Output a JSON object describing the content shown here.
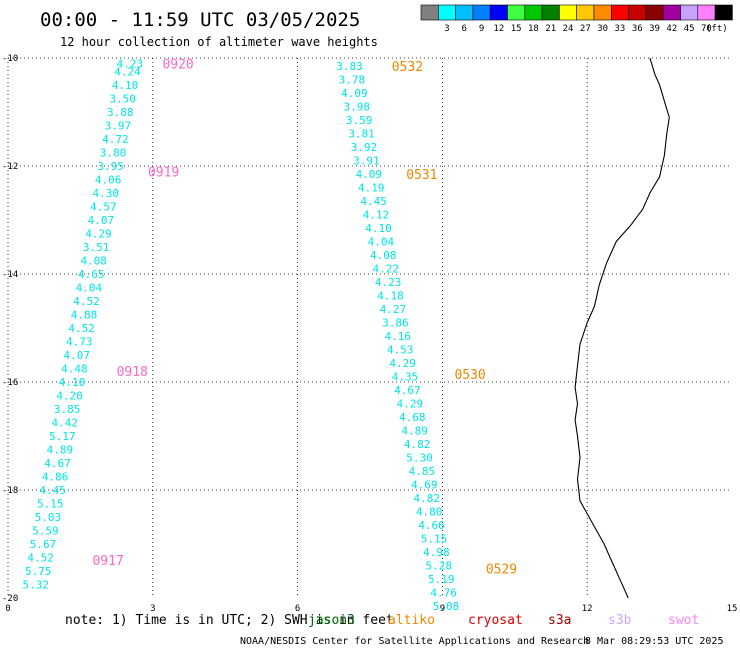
{
  "chart_data": {
    "type": "scatter",
    "title": "00:00 - 11:59 UTC 03/05/2025",
    "subtitle": "12 hour collection of altimeter wave heights",
    "xlabel": "",
    "ylabel": "",
    "xlim": [
      0,
      15
    ],
    "ylim": [
      -20,
      -10
    ],
    "x_ticks": [
      0,
      3,
      6,
      9,
      12,
      15
    ],
    "y_ticks": [
      -10,
      -12,
      -14,
      -16,
      -18,
      -20
    ],
    "grid": true,
    "color_scale": {
      "unit": "(ft)",
      "bins": [
        {
          "label": "",
          "color": "#808080"
        },
        {
          "label": "3",
          "color": "#00ffff"
        },
        {
          "label": "6",
          "color": "#00bfff"
        },
        {
          "label": "9",
          "color": "#0080ff"
        },
        {
          "label": "12",
          "color": "#0000ff"
        },
        {
          "label": "15",
          "color": "#40ff40"
        },
        {
          "label": "18",
          "color": "#00c800"
        },
        {
          "label": "21",
          "color": "#008000"
        },
        {
          "label": "24",
          "color": "#ffff00"
        },
        {
          "label": "27",
          "color": "#ffc800"
        },
        {
          "label": "30",
          "color": "#ff8c00"
        },
        {
          "label": "33",
          "color": "#ff0000"
        },
        {
          "label": "36",
          "color": "#c80000"
        },
        {
          "label": "39",
          "color": "#8b0000"
        },
        {
          "label": "42",
          "color": "#a000a0"
        },
        {
          "label": "45",
          "color": "#c8a0ff"
        },
        {
          "label": "70",
          "color": "#ff80ff"
        },
        {
          "label": "",
          "color": "#000000"
        }
      ]
    },
    "tracks": [
      {
        "satellite": "swot",
        "color": "#00e5e5",
        "label_color": "#ff66cc",
        "points": [
          {
            "lon": 2.8,
            "lat": -10.1,
            "v": "4.23"
          },
          {
            "lon": 2.75,
            "lat": -10.25,
            "v": "4.24"
          },
          {
            "lon": 2.7,
            "lat": -10.5,
            "v": "4.10"
          },
          {
            "lon": 2.65,
            "lat": -10.75,
            "v": "3.50"
          },
          {
            "lon": 2.6,
            "lat": -11.0,
            "v": "3.88"
          },
          {
            "lon": 2.55,
            "lat": -11.25,
            "v": "3.97"
          },
          {
            "lon": 2.5,
            "lat": -11.5,
            "v": "4.72"
          },
          {
            "lon": 2.45,
            "lat": -11.75,
            "v": "3.80"
          },
          {
            "lon": 2.4,
            "lat": -12.0,
            "v": "3.95"
          },
          {
            "lon": 2.35,
            "lat": -12.25,
            "v": "4.06"
          },
          {
            "lon": 2.3,
            "lat": -12.5,
            "v": "4.30"
          },
          {
            "lon": 2.25,
            "lat": -12.75,
            "v": "4.57"
          },
          {
            "lon": 2.2,
            "lat": -13.0,
            "v": "4.07"
          },
          {
            "lon": 2.15,
            "lat": -13.25,
            "v": "4.29"
          },
          {
            "lon": 2.1,
            "lat": -13.5,
            "v": "3.51"
          },
          {
            "lon": 2.05,
            "lat": -13.75,
            "v": "4.08"
          },
          {
            "lon": 2.0,
            "lat": -14.0,
            "v": "4.65"
          },
          {
            "lon": 1.95,
            "lat": -14.25,
            "v": "4.04"
          },
          {
            "lon": 1.9,
            "lat": -14.5,
            "v": "4.52"
          },
          {
            "lon": 1.85,
            "lat": -14.75,
            "v": "4.88"
          },
          {
            "lon": 1.8,
            "lat": -15.0,
            "v": "4.52"
          },
          {
            "lon": 1.75,
            "lat": -15.25,
            "v": "4.73"
          },
          {
            "lon": 1.7,
            "lat": -15.5,
            "v": "4.07"
          },
          {
            "lon": 1.65,
            "lat": -15.75,
            "v": "4.48"
          },
          {
            "lon": 1.6,
            "lat": -16.0,
            "v": "4.10"
          },
          {
            "lon": 1.55,
            "lat": -16.25,
            "v": "4.20"
          },
          {
            "lon": 1.5,
            "lat": -16.5,
            "v": "3.85"
          },
          {
            "lon": 1.45,
            "lat": -16.75,
            "v": "4.42"
          },
          {
            "lon": 1.4,
            "lat": -17.0,
            "v": "5.17"
          },
          {
            "lon": 1.35,
            "lat": -17.25,
            "v": "4.89"
          },
          {
            "lon": 1.3,
            "lat": -17.5,
            "v": "4.67"
          },
          {
            "lon": 1.25,
            "lat": -17.75,
            "v": "4.86"
          },
          {
            "lon": 1.2,
            "lat": -18.0,
            "v": "4.45"
          },
          {
            "lon": 1.15,
            "lat": -18.25,
            "v": "5.15"
          },
          {
            "lon": 1.1,
            "lat": -18.5,
            "v": "5.03"
          },
          {
            "lon": 1.05,
            "lat": -18.75,
            "v": "5.59"
          },
          {
            "lon": 1.0,
            "lat": -19.0,
            "v": "5.67"
          },
          {
            "lon": 0.95,
            "lat": -19.25,
            "v": "4.52"
          },
          {
            "lon": 0.9,
            "lat": -19.5,
            "v": "5.75"
          },
          {
            "lon": 0.85,
            "lat": -19.75,
            "v": "5.32"
          }
        ],
        "time_labels": [
          {
            "text": "0920",
            "lon": 3.2,
            "lat": -10.1
          },
          {
            "text": "0919",
            "lon": 2.9,
            "lat": -12.1
          },
          {
            "text": "0918",
            "lon": 2.25,
            "lat": -15.8
          },
          {
            "text": "0917",
            "lon": 1.75,
            "lat": -19.3
          }
        ]
      },
      {
        "satellite": "altiko",
        "color": "#00e5e5",
        "label_color": "#ee8800",
        "points": [
          {
            "lon": 7.35,
            "lat": -10.15,
            "v": "3.83"
          },
          {
            "lon": 7.4,
            "lat": -10.4,
            "v": "3.78"
          },
          {
            "lon": 7.45,
            "lat": -10.65,
            "v": "4.09"
          },
          {
            "lon": 7.5,
            "lat": -10.9,
            "v": "3.98"
          },
          {
            "lon": 7.55,
            "lat": -11.15,
            "v": "3.59"
          },
          {
            "lon": 7.6,
            "lat": -11.4,
            "v": "3.81"
          },
          {
            "lon": 7.65,
            "lat": -11.65,
            "v": "3.92"
          },
          {
            "lon": 7.7,
            "lat": -11.9,
            "v": "3.91"
          },
          {
            "lon": 7.75,
            "lat": -12.15,
            "v": "4.09"
          },
          {
            "lon": 7.8,
            "lat": -12.4,
            "v": "4.19"
          },
          {
            "lon": 7.85,
            "lat": -12.65,
            "v": "4.45"
          },
          {
            "lon": 7.9,
            "lat": -12.9,
            "v": "4.12"
          },
          {
            "lon": 7.95,
            "lat": -13.15,
            "v": "4.10"
          },
          {
            "lon": 8.0,
            "lat": -13.4,
            "v": "4.04"
          },
          {
            "lon": 8.05,
            "lat": -13.65,
            "v": "4.08"
          },
          {
            "lon": 8.1,
            "lat": -13.9,
            "v": "4.22"
          },
          {
            "lon": 8.15,
            "lat": -14.15,
            "v": "4.23"
          },
          {
            "lon": 8.2,
            "lat": -14.4,
            "v": "4.18"
          },
          {
            "lon": 8.25,
            "lat": -14.65,
            "v": "4.27"
          },
          {
            "lon": 8.3,
            "lat": -14.9,
            "v": "3.86"
          },
          {
            "lon": 8.35,
            "lat": -15.15,
            "v": "4.16"
          },
          {
            "lon": 8.4,
            "lat": -15.4,
            "v": "4.53"
          },
          {
            "lon": 8.45,
            "lat": -15.65,
            "v": "4.29"
          },
          {
            "lon": 8.5,
            "lat": -15.9,
            "v": "4.35"
          },
          {
            "lon": 8.55,
            "lat": -16.15,
            "v": "4.67"
          },
          {
            "lon": 8.6,
            "lat": -16.4,
            "v": "4.29"
          },
          {
            "lon": 8.65,
            "lat": -16.65,
            "v": "4.68"
          },
          {
            "lon": 8.7,
            "lat": -16.9,
            "v": "4.89"
          },
          {
            "lon": 8.75,
            "lat": -17.15,
            "v": "4.82"
          },
          {
            "lon": 8.8,
            "lat": -17.4,
            "v": "5.30"
          },
          {
            "lon": 8.85,
            "lat": -17.65,
            "v": "4.85"
          },
          {
            "lon": 8.9,
            "lat": -17.9,
            "v": "4.69"
          },
          {
            "lon": 8.95,
            "lat": -18.15,
            "v": "4.82"
          },
          {
            "lon": 9.0,
            "lat": -18.4,
            "v": "4.80"
          },
          {
            "lon": 9.05,
            "lat": -18.65,
            "v": "4.66"
          },
          {
            "lon": 9.1,
            "lat": -18.9,
            "v": "5.15"
          },
          {
            "lon": 9.15,
            "lat": -19.15,
            "v": "4.98"
          },
          {
            "lon": 9.2,
            "lat": -19.4,
            "v": "5.28"
          },
          {
            "lon": 9.25,
            "lat": -19.65,
            "v": "5.19"
          },
          {
            "lon": 9.3,
            "lat": -19.9,
            "v": "4.76"
          },
          {
            "lon": 9.35,
            "lat": -20.15,
            "v": "5.08"
          }
        ],
        "time_labels": [
          {
            "text": "0532",
            "lon": 7.95,
            "lat": -10.15
          },
          {
            "text": "0531",
            "lon": 8.25,
            "lat": -12.15
          },
          {
            "text": "0530",
            "lon": 9.25,
            "lat": -15.85
          },
          {
            "text": "0529",
            "lon": 9.9,
            "lat": -19.45
          }
        ]
      }
    ],
    "coastline": [
      [
        13.3,
        -10.0
      ],
      [
        13.4,
        -10.3
      ],
      [
        13.5,
        -10.5
      ],
      [
        13.6,
        -10.8
      ],
      [
        13.7,
        -11.1
      ],
      [
        13.65,
        -11.4
      ],
      [
        13.6,
        -11.8
      ],
      [
        13.5,
        -12.2
      ],
      [
        13.3,
        -12.5
      ],
      [
        13.15,
        -12.8
      ],
      [
        12.9,
        -13.1
      ],
      [
        12.6,
        -13.4
      ],
      [
        12.4,
        -13.8
      ],
      [
        12.25,
        -14.2
      ],
      [
        12.15,
        -14.6
      ],
      [
        12.0,
        -14.9
      ],
      [
        11.85,
        -15.3
      ],
      [
        11.8,
        -15.7
      ],
      [
        11.75,
        -16.1
      ],
      [
        11.8,
        -16.4
      ],
      [
        11.75,
        -16.7
      ],
      [
        11.8,
        -17.0
      ],
      [
        11.85,
        -17.4
      ],
      [
        11.8,
        -17.8
      ],
      [
        11.85,
        -18.2
      ],
      [
        12.1,
        -18.6
      ],
      [
        12.35,
        -19.0
      ],
      [
        12.55,
        -19.4
      ],
      [
        12.7,
        -19.7
      ],
      [
        12.85,
        -20.0
      ]
    ],
    "legend": {
      "note": "note: 1) Time is in UTC; 2) SWH is in feet",
      "items": [
        {
          "label": "jason3",
          "color": "#006400"
        },
        {
          "label": "altiko",
          "color": "#ee8800"
        },
        {
          "label": "cryosat",
          "color": "#dd0000"
        },
        {
          "label": "s3a",
          "color": "#990000"
        },
        {
          "label": "s3b",
          "color": "#c8a8ff"
        },
        {
          "label": "swot",
          "color": "#ff80ff"
        }
      ]
    },
    "credit": "NOAA/NESDIS Center for Satellite Applications and Research",
    "timestamp": "8 Mar 08:29:53 UTC 2025"
  }
}
